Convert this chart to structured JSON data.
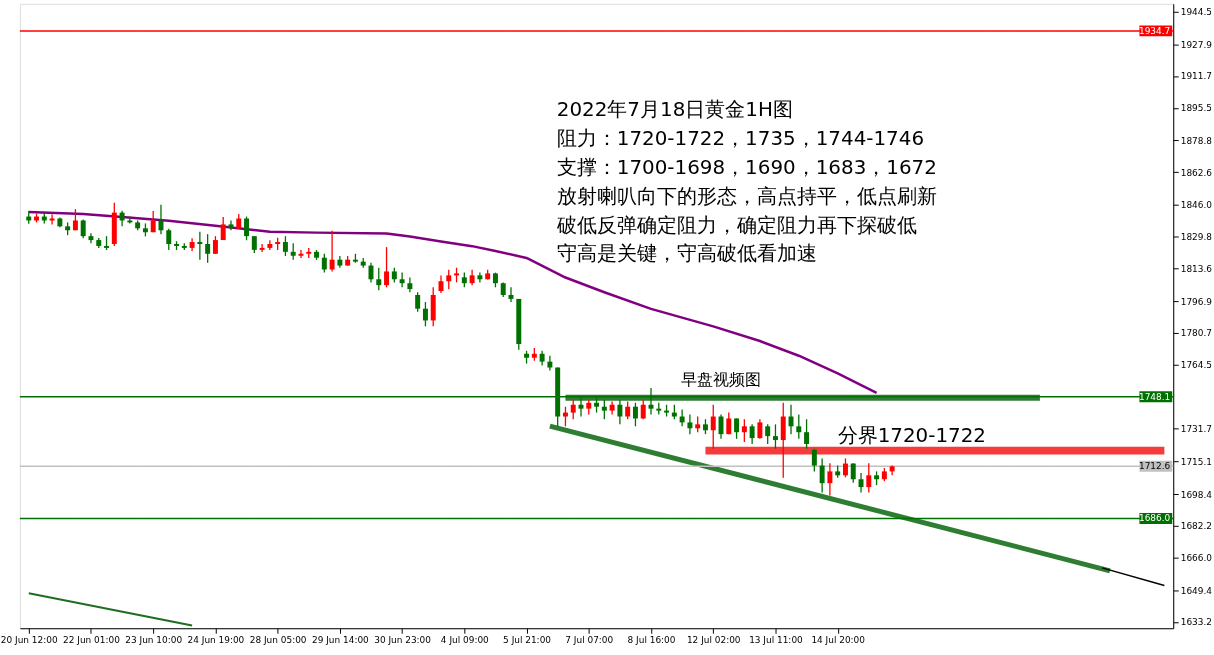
{
  "chart_data": {
    "type": "candlestick",
    "categories": [
      "20 Jun 12:00",
      null,
      null,
      null,
      null,
      null,
      null,
      null,
      "22 Jun 01:00",
      null,
      null,
      null,
      null,
      null,
      null,
      null,
      "23 Jun 10:00",
      null,
      null,
      null,
      null,
      null,
      null,
      null,
      "24 Jun 19:00",
      null,
      null,
      null,
      null,
      null,
      null,
      null,
      "28 Jun 05:00",
      null,
      null,
      null,
      null,
      null,
      null,
      null,
      "29 Jun 14:00",
      null,
      null,
      null,
      null,
      null,
      null,
      null,
      "30 Jun 23:00",
      null,
      null,
      null,
      null,
      null,
      null,
      null,
      "4 Jul 09:00",
      null,
      null,
      null,
      null,
      null,
      null,
      null,
      "5 Jul 21:00",
      null,
      null,
      null,
      null,
      null,
      null,
      null,
      "7 Jul 07:00",
      null,
      null,
      null,
      null,
      null,
      null,
      null,
      "8 Jul 16:00",
      null,
      null,
      null,
      null,
      null,
      null,
      null,
      "12 Jul 02:00",
      null,
      null,
      null,
      null,
      null,
      null,
      null,
      "13 Jul 11:00",
      null,
      null,
      null,
      null,
      null,
      null,
      null,
      "14 Jul 20:00",
      null,
      null,
      null,
      null,
      null,
      null,
      null,
      null,
      null,
      null,
      null,
      null,
      null,
      null,
      null,
      null,
      null,
      null,
      null,
      null,
      null,
      null,
      null,
      null,
      null,
      null,
      null,
      null,
      null,
      null,
      null,
      null,
      null,
      null,
      null,
      null,
      null,
      null,
      null,
      null,
      null,
      null
    ],
    "ohlc": [
      [
        1840,
        1842.8,
        1836.3,
        1838
      ],
      [
        1838,
        1841.5,
        1837,
        1840
      ],
      [
        1840,
        1842,
        1836.5,
        1838
      ],
      [
        1838,
        1841,
        1836,
        1839
      ],
      [
        1839,
        1839.5,
        1834.5,
        1835
      ],
      [
        1835,
        1837,
        1830.5,
        1833
      ],
      [
        1833,
        1843.8,
        1833,
        1838
      ],
      [
        1838,
        1838.5,
        1828.9,
        1830
      ],
      [
        1830,
        1831.5,
        1826.4,
        1828
      ],
      [
        1828,
        1829,
        1823.9,
        1825
      ],
      [
        1825,
        1830,
        1822.9,
        1824
      ],
      [
        1826,
        1847,
        1825,
        1842
      ],
      [
        1842,
        1843,
        1835,
        1838
      ],
      [
        1838,
        1840,
        1836.5,
        1837
      ],
      [
        1837,
        1838,
        1833,
        1834
      ],
      [
        1834,
        1836.5,
        1829.9,
        1832
      ],
      [
        1832,
        1842.8,
        1832,
        1838
      ],
      [
        1838,
        1846,
        1831,
        1833
      ],
      [
        1833,
        1833.8,
        1822.9,
        1826
      ],
      [
        1826,
        1827.4,
        1822.9,
        1825
      ],
      [
        1825,
        1826.4,
        1823,
        1824
      ],
      [
        1824,
        1828.9,
        1822.4,
        1827
      ],
      [
        1827,
        1832.3,
        1817.9,
        1826
      ],
      [
        1826,
        1831,
        1816.4,
        1821
      ],
      [
        1821,
        1830,
        1821,
        1828
      ],
      [
        1828,
        1839.8,
        1828,
        1836
      ],
      [
        1836,
        1838,
        1833,
        1834
      ],
      [
        1834,
        1841.3,
        1833.8,
        1839
      ],
      [
        1839,
        1840,
        1827.9,
        1830
      ],
      [
        1830,
        1830,
        1821.4,
        1823
      ],
      [
        1823,
        1826,
        1821.9,
        1824
      ],
      [
        1824,
        1827.9,
        1822.9,
        1826
      ],
      [
        1826,
        1829.2,
        1822.9,
        1827
      ],
      [
        1827,
        1830,
        1819.9,
        1822
      ],
      [
        1822,
        1826.4,
        1817.9,
        1820
      ],
      [
        1820,
        1822.9,
        1818.9,
        1821
      ],
      [
        1821,
        1823.9,
        1818.9,
        1822
      ],
      [
        1822,
        1822.9,
        1817.9,
        1819
      ],
      [
        1819,
        1821,
        1811.4,
        1813
      ],
      [
        1813,
        1832.8,
        1812,
        1818
      ],
      [
        1818,
        1819.9,
        1813.9,
        1815
      ],
      [
        1815,
        1819.9,
        1814.9,
        1818
      ],
      [
        1818,
        1821,
        1816.4,
        1817
      ],
      [
        1817,
        1818.9,
        1813.9,
        1815
      ],
      [
        1815,
        1816.4,
        1806.4,
        1808
      ],
      [
        1808,
        1813.9,
        1802.4,
        1805
      ],
      [
        1805,
        1824.4,
        1803.9,
        1812
      ],
      [
        1812,
        1813.9,
        1806.4,
        1808
      ],
      [
        1808,
        1811.4,
        1803.9,
        1806
      ],
      [
        1806,
        1808.9,
        1801.4,
        1803
      ],
      [
        1800,
        1801.4,
        1791.4,
        1793
      ],
      [
        1793,
        1796.4,
        1784,
        1787
      ],
      [
        1787,
        1803.9,
        1784,
        1800
      ],
      [
        1802,
        1809.9,
        1801,
        1807
      ],
      [
        1807,
        1812.9,
        1802.9,
        1810
      ],
      [
        1810,
        1813.9,
        1806.4,
        1811
      ],
      [
        1809,
        1811.4,
        1803.9,
        1806
      ],
      [
        1806,
        1812.9,
        1804.9,
        1810
      ],
      [
        1810,
        1811.4,
        1806.4,
        1808
      ],
      [
        1808,
        1812.9,
        1807.9,
        1811
      ],
      [
        1811,
        1811.4,
        1803.9,
        1806
      ],
      [
        1806,
        1806.4,
        1798.9,
        1800
      ],
      [
        1800,
        1803.9,
        1796.4,
        1798
      ],
      [
        1798,
        1798,
        1772,
        1775
      ],
      [
        1770,
        1771.5,
        1765,
        1768
      ],
      [
        1768,
        1773,
        1766.5,
        1770
      ],
      [
        1770,
        1771.5,
        1764,
        1766
      ],
      [
        1766,
        1769,
        1761.5,
        1763
      ],
      [
        1763,
        1763,
        1733,
        1738
      ],
      [
        1738,
        1743,
        1733,
        1740
      ],
      [
        1740,
        1746.6,
        1736.6,
        1744
      ],
      [
        1744,
        1747.6,
        1738,
        1742
      ],
      [
        1742,
        1746.6,
        1739,
        1745
      ],
      [
        1745,
        1747.6,
        1740,
        1743
      ],
      [
        1743,
        1746.6,
        1736.6,
        1741
      ],
      [
        1741,
        1745.6,
        1739,
        1744
      ],
      [
        1744,
        1746.6,
        1734,
        1738
      ],
      [
        1738,
        1745.6,
        1736.6,
        1743
      ],
      [
        1743,
        1745,
        1733,
        1737
      ],
      [
        1737,
        1746.6,
        1736.6,
        1744
      ],
      [
        1744,
        1752.5,
        1739,
        1742
      ],
      [
        1742,
        1745,
        1739,
        1741
      ],
      [
        1741,
        1744,
        1738,
        1740
      ],
      [
        1740,
        1744,
        1736.6,
        1738
      ],
      [
        1738,
        1741.6,
        1733,
        1735
      ],
      [
        1735,
        1739,
        1729,
        1732
      ],
      [
        1732,
        1738,
        1730,
        1734
      ],
      [
        1734,
        1736.6,
        1729,
        1731
      ],
      [
        1731,
        1744,
        1721.6,
        1738
      ],
      [
        1738,
        1739,
        1726.6,
        1729
      ],
      [
        1729,
        1740,
        1729,
        1737
      ],
      [
        1737,
        1737,
        1726.6,
        1730
      ],
      [
        1730,
        1736.6,
        1725,
        1733
      ],
      [
        1733,
        1734,
        1724,
        1727
      ],
      [
        1727,
        1736.6,
        1726.6,
        1735
      ],
      [
        1733,
        1734,
        1724,
        1728
      ],
      [
        1728,
        1734,
        1721.6,
        1726
      ],
      [
        1726,
        1745,
        1706.7,
        1738
      ],
      [
        1738,
        1744,
        1729,
        1733
      ],
      [
        1733,
        1739,
        1726.6,
        1730
      ],
      [
        1730,
        1736.6,
        1721.6,
        1724
      ],
      [
        1721,
        1721.6,
        1710,
        1713
      ],
      [
        1713,
        1716.6,
        1699.2,
        1704
      ],
      [
        1704,
        1714.2,
        1697.7,
        1710
      ],
      [
        1710,
        1713,
        1706.7,
        1708
      ],
      [
        1708,
        1716.6,
        1707,
        1714
      ],
      [
        1714,
        1714.2,
        1704.2,
        1706
      ],
      [
        1706,
        1709.2,
        1699.2,
        1702
      ],
      [
        1702,
        1714.2,
        1699.2,
        1708
      ],
      [
        1708,
        1710,
        1703,
        1706
      ],
      [
        1706,
        1711.7,
        1705,
        1710
      ],
      [
        1710,
        1713,
        1708,
        1712.6
      ],
      null,
      null,
      null,
      null,
      null,
      null,
      null,
      null,
      null,
      null,
      null,
      null,
      null,
      null,
      null,
      null,
      null,
      null,
      null,
      null,
      null,
      null,
      null,
      null,
      null,
      null,
      null,
      null,
      null,
      null,
      null,
      null,
      null,
      null,
      null
    ],
    "colors": [
      "#007000",
      "#ff0000",
      "#007000",
      "#ff0000",
      "#007000",
      "#007000",
      "#ff0000",
      "#007000",
      "#007000",
      "#007000",
      "#007000",
      "#ff0000",
      "#007000",
      "#007000",
      "#007000",
      "#007000",
      "#ff0000",
      "#007000",
      "#007000",
      "#007000",
      "#007000",
      "#ff0000",
      "#007000",
      "#007000",
      "#ff0000",
      "#ff0000",
      "#007000",
      "#ff0000",
      "#007000",
      "#007000",
      "#ff0000",
      "#ff0000",
      "#ff0000",
      "#007000",
      "#007000",
      "#ff0000",
      "#ff0000",
      "#007000",
      "#007000",
      "#ff0000",
      "#007000",
      "#ff0000",
      "#007000",
      "#007000",
      "#007000",
      "#007000",
      "#ff0000",
      "#007000",
      "#007000",
      "#007000",
      "#007000",
      "#007000",
      "#ff0000",
      "#ff0000",
      "#ff0000",
      "#ff0000",
      "#007000",
      "#ff0000",
      "#007000",
      "#ff0000",
      "#007000",
      "#007000",
      "#007000",
      "#007000",
      "#007000",
      "#ff0000",
      "#007000",
      "#007000",
      "#007000",
      "#ff0000",
      "#ff0000",
      "#007000",
      "#ff0000",
      "#007000",
      "#007000",
      "#ff0000",
      "#007000",
      "#ff0000",
      "#007000",
      "#ff0000",
      "#007000",
      "#007000",
      "#007000",
      "#007000",
      "#007000",
      "#007000",
      "#ff0000",
      "#007000",
      "#ff0000",
      "#007000",
      "#ff0000",
      "#007000",
      "#ff0000",
      "#007000",
      "#ff0000",
      "#007000",
      "#007000",
      "#ff0000",
      "#007000",
      "#007000",
      "#007000",
      "#007000",
      "#007000",
      "#ff0000",
      "#007000",
      "#ff0000",
      "#007000",
      "#007000",
      "#ff0000",
      "#007000",
      "#ff0000",
      "#ff0000",
      null,
      null,
      null,
      null,
      null,
      null,
      null,
      null,
      null,
      null,
      null,
      null,
      null,
      null,
      null,
      null,
      null,
      null,
      null,
      null,
      null,
      null,
      null,
      null,
      null,
      null,
      null,
      null,
      null,
      null,
      null,
      null,
      null,
      null,
      null
    ],
    "series": [
      {
        "type": "line",
        "color": "#800080",
        "values": [
          1842.3,
          null,
          null,
          null,
          null,
          null,
          null,
          1841.3,
          null,
          null,
          null,
          null,
          1839.8,
          null,
          null,
          null,
          null,
          null,
          1837.8,
          null,
          null,
          null,
          null,
          null,
          1835.3,
          null,
          null,
          null,
          null,
          null,
          null,
          1832.3,
          null,
          null,
          null,
          null,
          null,
          1831.8,
          null,
          null,
          null,
          null,
          null,
          null,
          null,
          null,
          1831.3,
          null,
          null,
          1829.8,
          null,
          null,
          null,
          1827.3,
          null,
          null,
          null,
          1824.9,
          null,
          null,
          1822.4,
          null,
          null,
          null,
          1818.9,
          null,
          null,
          null,
          null,
          1808.9,
          null,
          null,
          null,
          null,
          1801.4,
          null,
          null,
          null,
          null,
          null,
          1792.9,
          null,
          null,
          null,
          null,
          null,
          null,
          null,
          1784.0,
          null,
          null,
          null,
          null,
          null,
          1776.5,
          null,
          null,
          null,
          null,
          1769.0,
          null,
          null,
          null,
          null,
          1760.0,
          null,
          null,
          null,
          null,
          1750.1,
          null,
          null,
          null,
          null,
          null,
          null,
          null,
          null,
          null,
          null,
          null,
          null,
          null,
          null,
          null,
          null,
          null,
          null,
          null,
          null,
          null,
          null,
          null,
          null,
          null,
          null,
          null,
          null,
          null,
          null,
          null,
          null,
          null,
          null,
          null,
          null,
          null
        ]
      },
      {
        "type": "line",
        "color": "#2e7d32",
        "values": [
          null,
          null,
          null,
          null,
          null,
          null,
          null,
          null,
          null,
          null,
          null,
          null,
          null,
          null,
          null,
          null,
          null,
          null,
          null,
          null,
          null,
          null,
          null,
          null,
          null,
          null,
          null,
          null,
          null,
          null,
          null,
          null,
          null,
          null,
          null,
          null,
          null,
          null,
          null,
          null,
          null,
          null,
          null,
          null,
          null,
          null,
          null,
          null,
          null,
          null,
          null,
          null,
          null,
          null,
          null,
          null,
          null,
          null,
          null,
          null,
          null,
          null,
          null,
          null,
          null,
          null,
          null,
          null,
          null,
          1747.6,
          null,
          null,
          null,
          null,
          null,
          null,
          null,
          null,
          null,
          null,
          null,
          null,
          null,
          null,
          null,
          null,
          null,
          null,
          null,
          null,
          null,
          null,
          null,
          null,
          null,
          null,
          null,
          null,
          null,
          null,
          null,
          null,
          null,
          null,
          null,
          null,
          null,
          null,
          null,
          null,
          null,
          null,
          null,
          null,
          null,
          null,
          null,
          null,
          null,
          null,
          null,
          null,
          null,
          null,
          null,
          null,
          null,
          null,
          null,
          null,
          1747.6,
          null,
          null,
          null,
          null,
          null,
          null,
          null,
          null,
          null,
          null,
          null,
          null,
          null,
          null,
          null,
          null
        ]
      },
      {
        "type": "line",
        "color": "#2e7d32",
        "values": [
          null,
          null,
          null,
          null,
          null,
          null,
          null,
          null,
          null,
          null,
          null,
          null,
          null,
          null,
          null,
          null,
          null,
          null,
          null,
          null,
          null,
          null,
          null,
          null,
          null,
          null,
          null,
          null,
          null,
          null,
          null,
          null,
          null,
          null,
          null,
          null,
          null,
          null,
          null,
          null,
          null,
          null,
          null,
          null,
          null,
          null,
          null,
          null,
          null,
          null,
          null,
          null,
          null,
          null,
          null,
          null,
          null,
          null,
          null,
          null,
          null,
          null,
          null,
          null,
          null,
          null,
          null,
          1733.1,
          null,
          null,
          null,
          null,
          null,
          null,
          null,
          null,
          null,
          null,
          null,
          null,
          null,
          null,
          null,
          null,
          null,
          null,
          null,
          null,
          null,
          null,
          null,
          null,
          null,
          null,
          null,
          null,
          null,
          null,
          null,
          null,
          null,
          null,
          null,
          null,
          null,
          null,
          null,
          null,
          null,
          null,
          null,
          null,
          null,
          null,
          null,
          null,
          null,
          null,
          null,
          null,
          null,
          null,
          null,
          null,
          null,
          null,
          null,
          null,
          null,
          null,
          null,
          null,
          null,
          null,
          null,
          null,
          null,
          null,
          null,
          1659.3,
          null,
          null,
          null,
          null,
          null,
          null,
          null
        ]
      },
      {
        "type": "line",
        "color": "#000000",
        "values": [
          null,
          null,
          null,
          null,
          null,
          null,
          null,
          null,
          null,
          null,
          null,
          null,
          null,
          null,
          null,
          null,
          null,
          null,
          null,
          null,
          null,
          null,
          null,
          null,
          null,
          null,
          null,
          null,
          null,
          null,
          null,
          null,
          null,
          null,
          null,
          null,
          null,
          null,
          null,
          null,
          null,
          null,
          null,
          null,
          null,
          null,
          null,
          null,
          null,
          null,
          null,
          null,
          null,
          null,
          null,
          null,
          null,
          null,
          null,
          null,
          null,
          null,
          null,
          null,
          null,
          null,
          null,
          null,
          null,
          null,
          null,
          null,
          null,
          null,
          null,
          null,
          null,
          null,
          null,
          null,
          null,
          null,
          null,
          null,
          null,
          null,
          null,
          null,
          null,
          null,
          null,
          null,
          null,
          null,
          null,
          null,
          null,
          null,
          null,
          null,
          null,
          null,
          null,
          null,
          null,
          null,
          null,
          null,
          null,
          null,
          null,
          null,
          null,
          null,
          null,
          null,
          null,
          null,
          null,
          null,
          null,
          null,
          null,
          null,
          null,
          null,
          null,
          null,
          null,
          null,
          null,
          null,
          null,
          null,
          null,
          null,
          null,
          null,
          1660.8,
          null,
          null,
          null,
          null,
          null,
          null,
          null,
          1651.8
        ]
      },
      {
        "type": "line",
        "color": "#1f6e1f",
        "values": [
          1647.8,
          null,
          null,
          null,
          null,
          null,
          null,
          null,
          null,
          null,
          null,
          null,
          null,
          null,
          null,
          null,
          null,
          null,
          null,
          null,
          null,
          1631.4,
          null,
          null,
          null,
          null,
          null,
          null,
          null,
          null,
          null,
          null,
          null,
          null,
          null,
          null,
          null,
          null,
          null,
          null,
          null,
          null,
          null,
          null,
          null,
          null,
          null,
          null,
          null,
          null,
          null,
          null,
          null,
          null,
          null,
          null,
          null,
          null,
          null,
          null,
          null,
          null,
          null,
          null,
          null,
          null,
          null,
          null,
          null,
          null,
          null,
          null,
          null,
          null,
          null,
          null,
          null,
          null,
          null,
          null,
          null,
          null,
          null,
          null,
          null,
          null,
          null,
          null,
          null,
          null,
          null,
          null,
          null,
          null,
          null,
          null,
          null,
          null,
          null,
          null,
          null,
          null,
          null,
          null,
          null,
          null,
          null,
          null,
          null,
          null,
          null,
          null,
          null,
          null,
          null,
          null,
          null,
          null,
          null,
          null,
          null,
          null,
          null,
          null,
          null,
          null,
          null,
          null,
          null,
          null,
          null,
          null,
          null,
          null,
          null,
          null,
          null,
          null,
          null,
          null,
          null,
          null,
          null,
          null,
          null,
          null,
          null
        ]
      },
      {
        "type": "line",
        "color": "#f53b3b",
        "values": [
          null,
          null,
          null,
          null,
          null,
          null,
          null,
          null,
          null,
          null,
          null,
          null,
          null,
          null,
          null,
          null,
          null,
          null,
          null,
          null,
          null,
          null,
          null,
          null,
          null,
          null,
          null,
          null,
          null,
          null,
          null,
          null,
          null,
          null,
          null,
          null,
          null,
          null,
          null,
          null,
          null,
          null,
          null,
          null,
          null,
          null,
          null,
          null,
          null,
          null,
          null,
          null,
          null,
          null,
          null,
          null,
          null,
          null,
          null,
          null,
          null,
          null,
          null,
          null,
          null,
          null,
          null,
          null,
          null,
          null,
          null,
          null,
          null,
          null,
          null,
          null,
          null,
          null,
          null,
          null,
          null,
          null,
          null,
          null,
          null,
          null,
          null,
          1720.6,
          null,
          null,
          null,
          null,
          null,
          null,
          null,
          null,
          null,
          null,
          null,
          null,
          null,
          null,
          null,
          null,
          null,
          null,
          null,
          null,
          null,
          null,
          null,
          null,
          null,
          null,
          null,
          null,
          null,
          null,
          null,
          null,
          null,
          null,
          null,
          null,
          null,
          null,
          null,
          null,
          null,
          null,
          null,
          null,
          null,
          null,
          null,
          null,
          null,
          null,
          null,
          null,
          null,
          null,
          null,
          null,
          null,
          null,
          1720.6
        ]
      }
    ],
    "ylim": [
      1630,
      1948.5
    ],
    "yticks": [
      1633.2,
      1649.4,
      {
        "value": 1666,
        "label": "1666.0"
      },
      1682.2,
      1698.4,
      1715.1,
      1731.7,
      1764.5,
      1780.7,
      1796.9,
      1813.6,
      1829.8,
      {
        "value": 1846,
        "label": "1846.0"
      },
      1862.6,
      1878.8,
      1895.5,
      1911.7,
      1927.9,
      1944.5
    ],
    "ref_lines": [
      {
        "axis": "y",
        "value": 1934.7,
        "label": "1934.7",
        "color": "#ff0000"
      },
      {
        "axis": "y",
        "value": 1748.1,
        "label": "1748.1",
        "color": "#007000"
      },
      {
        "axis": "y",
        "value": 1712.6,
        "label": "1712.6",
        "color": "#c0c0c0"
      },
      {
        "axis": "y",
        "value": 1686.0,
        "label": "1686.0",
        "color": "#007000"
      }
    ],
    "annotations": [
      "2022年7月18日黄金1H图",
      "阻力：1720-1722，1735，1744-1746",
      "支撑：1700-1698，1690，1683，1672",
      "放射喇叭向下的形态，高点持平，低点刷新",
      "破低反弹确定阻力，确定阻力再下探破低",
      "守高是关键，守高破低看加速",
      "早盘视频图",
      {
        "text": "分界1720-1722",
        "x": "14 Jul 20:00",
        "y": 1720.6
      }
    ],
    "grid": false
  }
}
